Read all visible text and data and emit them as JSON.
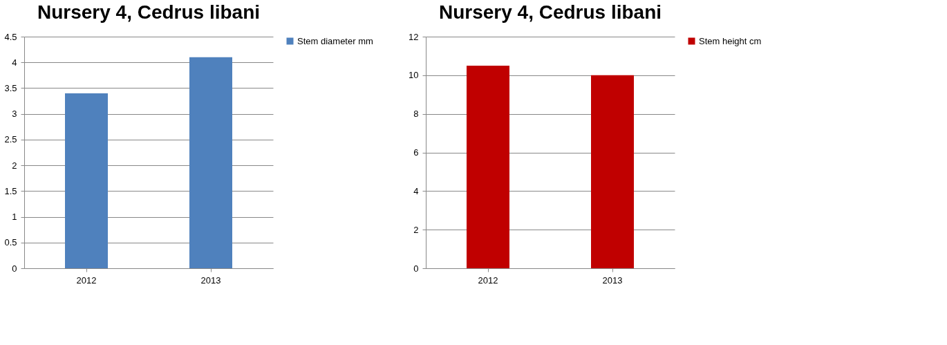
{
  "chart_data": [
    {
      "type": "bar",
      "title": "Nursery 4, Cedrus libani",
      "categories": [
        "2012",
        "2013"
      ],
      "series": [
        {
          "name": "Stem diameter mm",
          "color": "#4f81bd",
          "values": [
            3.4,
            4.1
          ]
        }
      ],
      "ylim": [
        0,
        4.5
      ],
      "yticks": [
        0,
        0.5,
        1,
        1.5,
        2,
        2.5,
        3,
        3.5,
        4,
        4.5
      ],
      "grid": "y",
      "legend": "right"
    },
    {
      "type": "bar",
      "title": "Nursery 4, Cedrus libani",
      "categories": [
        "2012",
        "2013"
      ],
      "series": [
        {
          "name": "Stem height cm",
          "color": "#c00000",
          "values": [
            10.5,
            10
          ]
        }
      ],
      "ylim": [
        0,
        12
      ],
      "yticks": [
        0,
        2,
        4,
        6,
        8,
        10,
        12
      ],
      "grid": "y",
      "legend": "right"
    }
  ]
}
